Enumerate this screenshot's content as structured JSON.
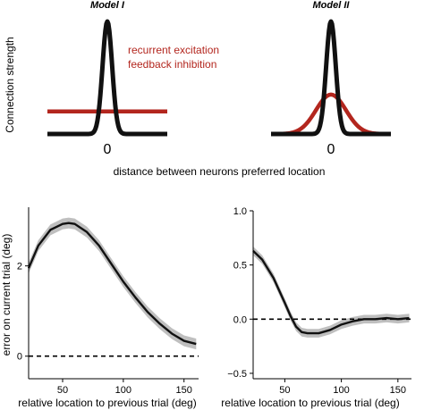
{
  "colors": {
    "excitation": "#111111",
    "inhibition": "#b3261e",
    "band": "#bfbfbf",
    "line": "#111111"
  },
  "chart_data": [
    {
      "type": "line",
      "title": "Model I",
      "ylabel": "Connection strength",
      "center_tick": "0",
      "legend": {
        "placement": "right",
        "entries": [
          "recurrent excitation",
          "feedback inhibition"
        ]
      },
      "series": [
        {
          "name": "recurrent excitation",
          "shape": "narrow-gaussian",
          "peak": 1.0,
          "width": 0.08
        },
        {
          "name": "feedback inhibition",
          "shape": "flat",
          "level": 0.2
        }
      ]
    },
    {
      "type": "line",
      "title": "Model II",
      "center_tick": "0",
      "series": [
        {
          "name": "recurrent excitation",
          "shape": "narrow-gaussian",
          "peak": 1.0,
          "width": 0.08
        },
        {
          "name": "feedback inhibition",
          "shape": "wide-gaussian",
          "peak": 0.35,
          "width": 0.25
        }
      ]
    },
    {
      "shared_xlabel": "distance between neurons preferred location"
    },
    {
      "type": "line",
      "xlabel": "relative location to previous trial (deg)",
      "ylabel": "error on current trial (deg)",
      "xlim": [
        22,
        162
      ],
      "ylim": [
        -0.5,
        3.3
      ],
      "xticks": [
        50,
        100,
        150
      ],
      "yticks": [
        0,
        2
      ],
      "reference_line_y": 0,
      "band_halfwidth": 0.12,
      "x": [
        22,
        30,
        40,
        50,
        55,
        60,
        70,
        80,
        90,
        100,
        110,
        120,
        130,
        140,
        150,
        160
      ],
      "y": [
        1.95,
        2.45,
        2.8,
        2.93,
        2.95,
        2.93,
        2.75,
        2.45,
        2.05,
        1.65,
        1.3,
        0.98,
        0.72,
        0.5,
        0.34,
        0.27
      ]
    },
    {
      "type": "line",
      "xlabel": "relative location to previous trial (deg)",
      "xlim": [
        22,
        162
      ],
      "ylim": [
        -0.55,
        1.0
      ],
      "xticks": [
        50,
        100,
        150
      ],
      "yticks": [
        -0.5,
        0.0,
        0.5,
        1.0
      ],
      "ytick_labels": [
        "−0.5",
        "0.0",
        "0.5",
        "1.0"
      ],
      "reference_line_y": 0,
      "band_halfwidth": 0.04,
      "x": [
        22,
        30,
        40,
        50,
        55,
        60,
        65,
        70,
        80,
        90,
        100,
        110,
        120,
        130,
        140,
        150,
        160
      ],
      "y": [
        0.63,
        0.55,
        0.38,
        0.15,
        0.03,
        -0.07,
        -0.12,
        -0.13,
        -0.13,
        -0.1,
        -0.05,
        -0.02,
        0.0,
        0.0,
        0.01,
        0.0,
        0.01
      ]
    }
  ]
}
